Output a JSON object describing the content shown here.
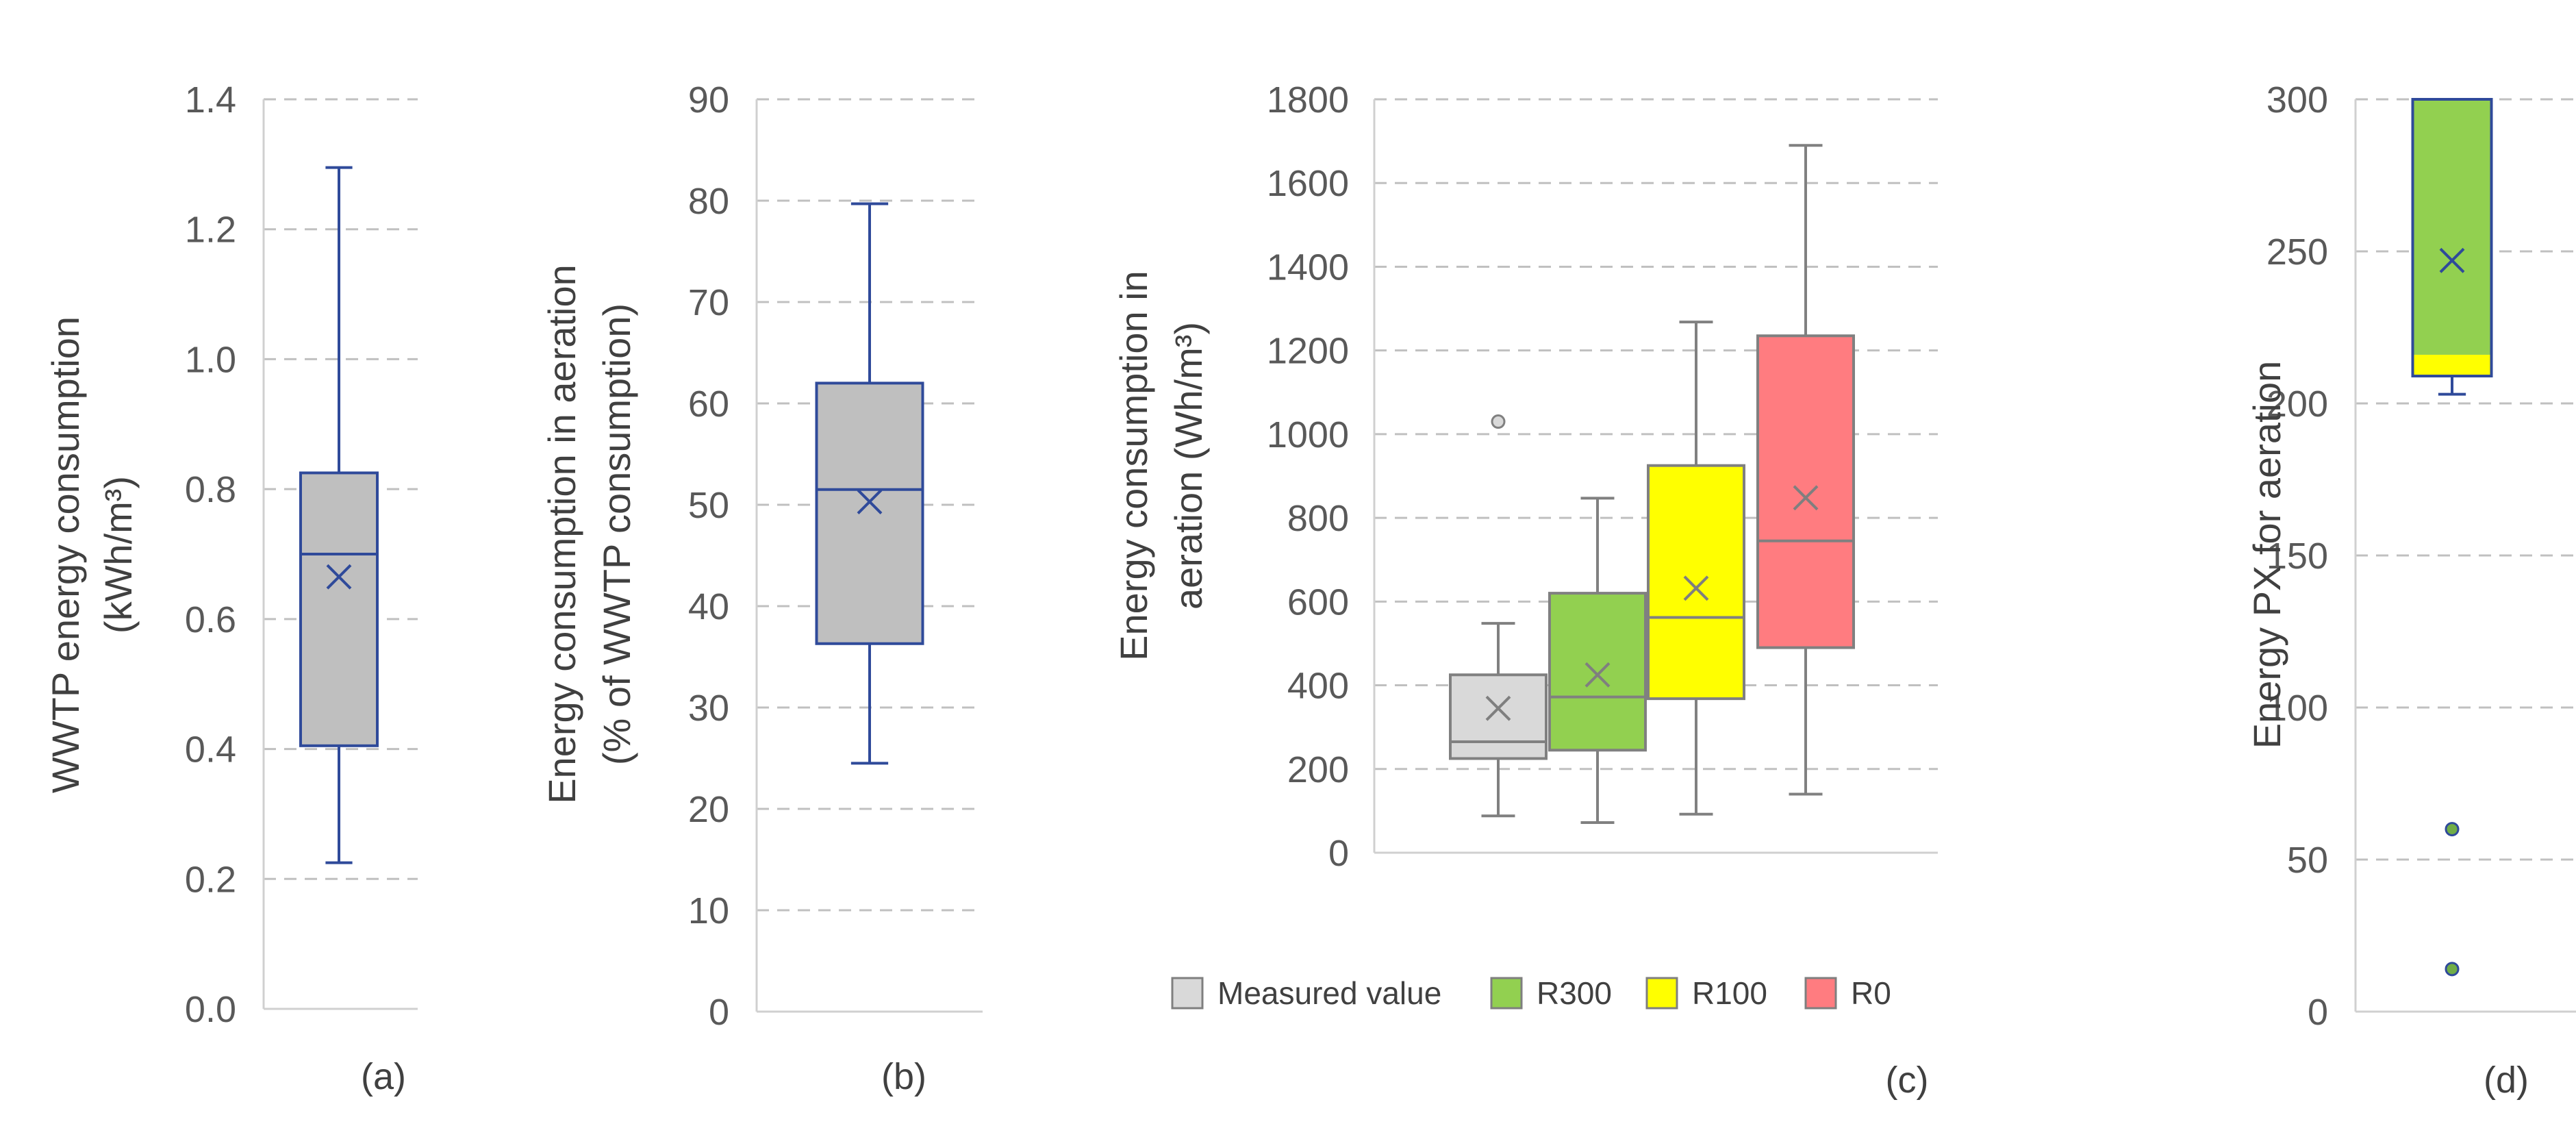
{
  "chart_data": [
    {
      "type": "box",
      "panel_label": "(a)",
      "ylabel": "WWTP energy consumption",
      "ylabel_unit": "(kWh/m³)",
      "ylim": [
        0,
        1.4
      ],
      "y_ticks": [
        "0.0",
        "0.2",
        "0.4",
        "0.6",
        "0.8",
        "1.0",
        "1.2",
        "1.4"
      ],
      "boxes": [
        {
          "min": 0.225,
          "q1": 0.405,
          "median": 0.7,
          "q3": 0.825,
          "max": 1.295,
          "mean": 0.665,
          "outliers": [],
          "fill": "#bfbfbf",
          "stroke": "#2f4a9a",
          "mean_color": "#2f4a9a"
        }
      ]
    },
    {
      "type": "box",
      "panel_label": "(b)",
      "ylabel": "Energy consumption  in aeration",
      "ylabel_unit": "(% of WWTP consumption)",
      "ylim": [
        0,
        90
      ],
      "y_ticks": [
        "0",
        "10",
        "20",
        "30",
        "40",
        "50",
        "60",
        "70",
        "80",
        "90"
      ],
      "boxes": [
        {
          "min": 24.5,
          "q1": 36.3,
          "median": 51.5,
          "q3": 62.0,
          "max": 79.7,
          "mean": 50.3,
          "outliers": [],
          "fill": "#bfbfbf",
          "stroke": "#2f4a9a",
          "mean_color": "#2f4a9a"
        }
      ]
    },
    {
      "type": "box",
      "panel_label": "(c)",
      "ylabel": "Energy consumption in",
      "ylabel_unit": "aeration (Wh/m³)",
      "ylim": [
        0,
        1800
      ],
      "y_ticks": [
        "0",
        "200",
        "400",
        "600",
        "800",
        "1000",
        "1200",
        "1400",
        "1600",
        "1800"
      ],
      "legend": [
        "Measured value",
        "R300",
        "R100",
        "R0"
      ],
      "legend_position": "bottom",
      "boxes": [
        {
          "name": "Measured value",
          "min": 88,
          "q1": 225,
          "median": 265,
          "q3": 425,
          "max": 548,
          "mean": 345,
          "outliers": [
            1030
          ],
          "fill": "#d9d9d9",
          "stroke": "#808080",
          "mean_color": "#7f7f7f"
        },
        {
          "name": "R300",
          "min": 72,
          "q1": 245,
          "median": 372,
          "q3": 620,
          "max": 847,
          "mean": 425,
          "outliers": [],
          "fill": "#92d050",
          "stroke": "#808080",
          "mean_color": "#7f7f7f"
        },
        {
          "name": "R100",
          "min": 92,
          "q1": 368,
          "median": 562,
          "q3": 925,
          "max": 1268,
          "mean": 632,
          "outliers": [],
          "fill": "#ffff00",
          "stroke": "#808080",
          "mean_color": "#7f7f7f"
        },
        {
          "name": "R0",
          "min": 140,
          "q1": 490,
          "median": 745,
          "q3": 1235,
          "max": 1690,
          "mean": 848,
          "outliers": [],
          "fill": "#ff7c80",
          "stroke": "#808080",
          "mean_color": "#7f7f7f"
        }
      ]
    },
    {
      "type": "box",
      "panel_label": "(d)",
      "ylabel": "Energy PX for aeration",
      "ylim": [
        0,
        300
      ],
      "y_ticks": [
        "0",
        "50",
        "100",
        "150",
        "200",
        "250",
        "300"
      ],
      "boxes": [
        {
          "min": 203,
          "q1": 209,
          "median": 216,
          "q3": 300,
          "max": 300,
          "mean": 247,
          "outliers": [
            60,
            14
          ],
          "fill": "#92d050",
          "lower_fill": "#ffff00",
          "stroke": "#2f4a9a",
          "mean_color": "#2f4a9a",
          "outlier_fill": "#70ad47"
        }
      ]
    }
  ]
}
